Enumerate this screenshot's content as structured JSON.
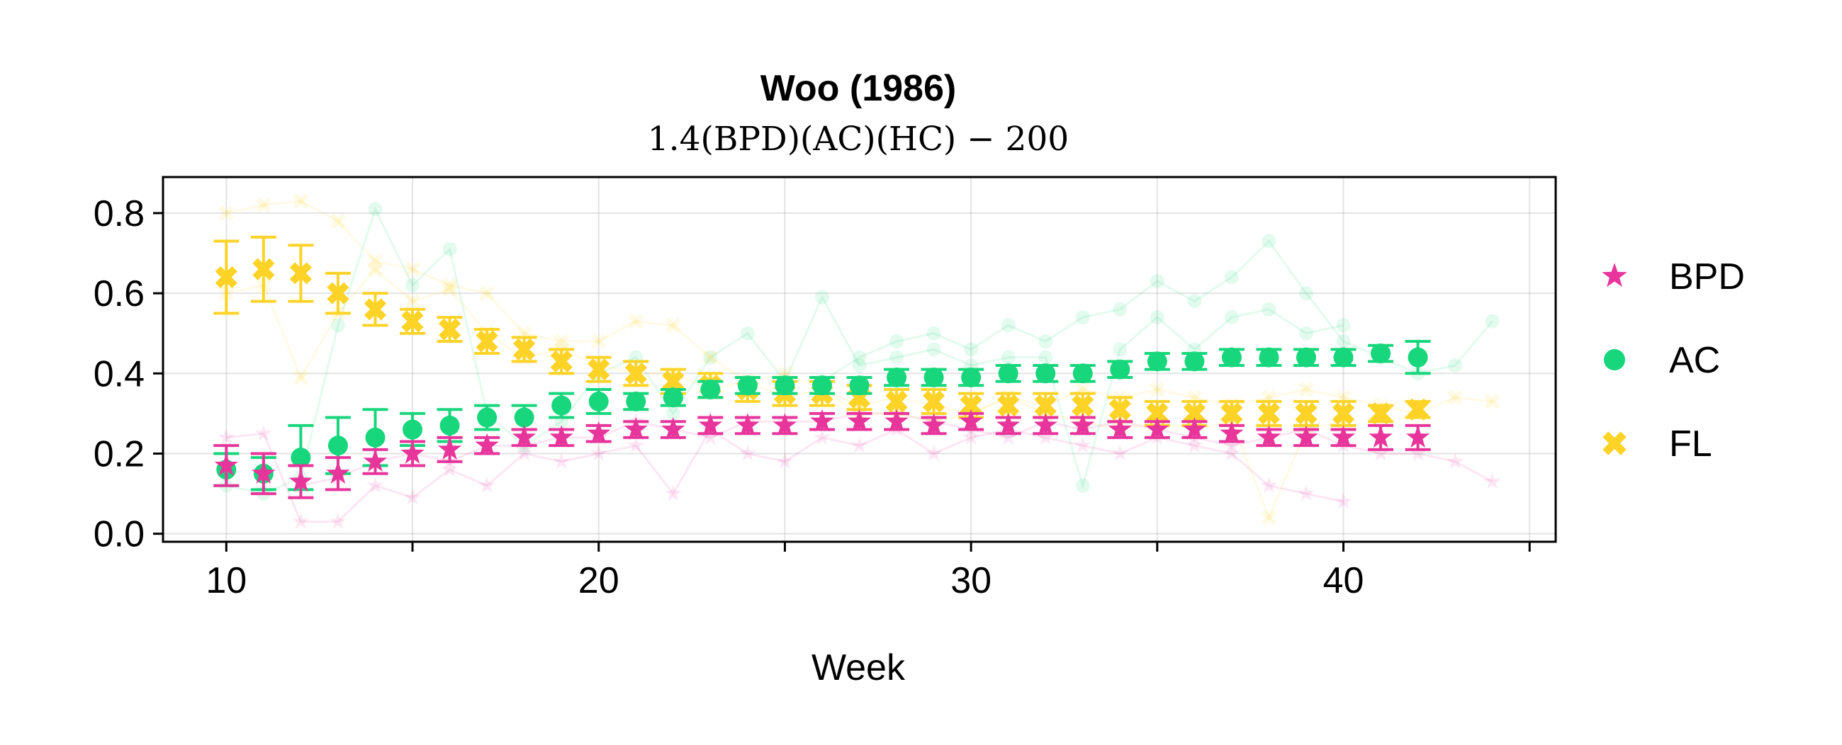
{
  "chart_data": {
    "type": "scatter",
    "title": "Woo (1986)",
    "subtitle": "1.4(BPD)(AC)(HC) − 200",
    "xlabel": "Week",
    "ylabel": "",
    "xlim": [
      8.3,
      45.7
    ],
    "ylim": [
      -0.02,
      0.89
    ],
    "xticks": [
      10,
      20,
      30,
      40
    ],
    "xticks_minor": [
      15,
      25,
      35,
      45
    ],
    "yticks": [
      0.0,
      0.2,
      0.4,
      0.6,
      0.8
    ],
    "ytick_labels": [
      "0.0",
      "0.2",
      "0.4",
      "0.6",
      "0.8"
    ],
    "xtick_labels": [
      "10",
      "20",
      "30",
      "40"
    ],
    "grid": true,
    "legend_position": "right",
    "series": [
      {
        "name": "BPD",
        "color": "#e8359b",
        "marker": "star",
        "x": [
          10,
          11,
          12,
          13,
          14,
          15,
          16,
          17,
          18,
          19,
          20,
          21,
          22,
          23,
          24,
          25,
          26,
          27,
          28,
          29,
          30,
          31,
          32,
          33,
          34,
          35,
          36,
          37,
          38,
          39,
          40,
          41,
          42
        ],
        "mean": [
          0.17,
          0.15,
          0.13,
          0.15,
          0.18,
          0.2,
          0.21,
          0.22,
          0.24,
          0.24,
          0.25,
          0.26,
          0.26,
          0.27,
          0.27,
          0.27,
          0.28,
          0.28,
          0.28,
          0.27,
          0.28,
          0.27,
          0.27,
          0.27,
          0.26,
          0.26,
          0.26,
          0.25,
          0.24,
          0.24,
          0.24,
          0.24,
          0.24
        ],
        "err": [
          0.05,
          0.05,
          0.04,
          0.04,
          0.03,
          0.03,
          0.03,
          0.02,
          0.02,
          0.02,
          0.02,
          0.02,
          0.02,
          0.02,
          0.02,
          0.02,
          0.02,
          0.02,
          0.02,
          0.02,
          0.02,
          0.02,
          0.02,
          0.02,
          0.02,
          0.02,
          0.02,
          0.02,
          0.02,
          0.02,
          0.02,
          0.03,
          0.03
        ]
      },
      {
        "name": "AC",
        "color": "#17d67c",
        "marker": "circle",
        "x": [
          10,
          11,
          12,
          13,
          14,
          15,
          16,
          17,
          18,
          19,
          20,
          21,
          22,
          23,
          24,
          25,
          26,
          27,
          28,
          29,
          30,
          31,
          32,
          33,
          34,
          35,
          36,
          37,
          38,
          39,
          40,
          41,
          42
        ],
        "mean": [
          0.16,
          0.15,
          0.19,
          0.22,
          0.24,
          0.26,
          0.27,
          0.29,
          0.29,
          0.32,
          0.33,
          0.33,
          0.34,
          0.36,
          0.37,
          0.37,
          0.37,
          0.37,
          0.39,
          0.39,
          0.39,
          0.4,
          0.4,
          0.4,
          0.41,
          0.43,
          0.43,
          0.44,
          0.44,
          0.44,
          0.44,
          0.45,
          0.44
        ],
        "err": [
          0.04,
          0.04,
          0.08,
          0.07,
          0.07,
          0.04,
          0.04,
          0.03,
          0.03,
          0.03,
          0.03,
          0.02,
          0.02,
          0.02,
          0.02,
          0.02,
          0.02,
          0.02,
          0.02,
          0.02,
          0.02,
          0.02,
          0.02,
          0.02,
          0.02,
          0.02,
          0.02,
          0.02,
          0.02,
          0.02,
          0.02,
          0.02,
          0.04
        ]
      },
      {
        "name": "FL",
        "color": "#fdd327",
        "marker": "x",
        "x": [
          10,
          11,
          12,
          13,
          14,
          15,
          16,
          17,
          18,
          19,
          20,
          21,
          22,
          23,
          24,
          25,
          26,
          27,
          28,
          29,
          30,
          31,
          32,
          33,
          34,
          35,
          36,
          37,
          38,
          39,
          40,
          41,
          42
        ],
        "mean": [
          0.64,
          0.66,
          0.65,
          0.6,
          0.56,
          0.53,
          0.51,
          0.48,
          0.46,
          0.43,
          0.41,
          0.4,
          0.38,
          0.37,
          0.36,
          0.35,
          0.35,
          0.34,
          0.33,
          0.33,
          0.32,
          0.32,
          0.32,
          0.32,
          0.31,
          0.3,
          0.3,
          0.3,
          0.3,
          0.3,
          0.3,
          0.3,
          0.31
        ],
        "err": [
          0.09,
          0.08,
          0.07,
          0.05,
          0.04,
          0.03,
          0.03,
          0.03,
          0.03,
          0.03,
          0.03,
          0.03,
          0.03,
          0.03,
          0.03,
          0.03,
          0.03,
          0.03,
          0.03,
          0.03,
          0.03,
          0.03,
          0.03,
          0.03,
          0.03,
          0.03,
          0.03,
          0.03,
          0.03,
          0.03,
          0.03,
          0.02,
          0.02
        ]
      }
    ],
    "background_traces": [
      {
        "series": "BPD",
        "x": [
          10,
          11,
          12,
          13,
          14,
          15,
          16,
          17,
          18,
          19,
          20,
          21,
          22,
          23,
          24,
          25,
          26,
          27,
          28,
          29,
          30,
          31,
          32,
          33,
          34,
          35,
          36,
          37,
          38,
          39,
          40
        ],
        "y": [
          0.24,
          0.25,
          0.03,
          0.03,
          0.12,
          0.09,
          0.16,
          0.12,
          0.2,
          0.18,
          0.2,
          0.22,
          0.1,
          0.26,
          0.2,
          0.18,
          0.24,
          0.22,
          0.26,
          0.2,
          0.24,
          0.26,
          0.24,
          0.22,
          0.2,
          0.24,
          0.22,
          0.2,
          0.12,
          0.1,
          0.08
        ]
      },
      {
        "series": "BPD",
        "x": [
          12,
          13,
          14,
          15,
          16,
          17,
          18,
          19,
          20,
          21,
          22,
          23,
          24,
          25,
          26,
          27,
          28,
          29,
          30,
          31,
          32,
          33,
          34,
          35,
          36,
          37,
          38,
          39,
          40,
          41,
          42,
          43,
          44
        ],
        "y": [
          0.12,
          0.14,
          0.18,
          0.2,
          0.18,
          0.22,
          0.22,
          0.24,
          0.24,
          0.28,
          0.26,
          0.24,
          0.28,
          0.28,
          0.28,
          0.3,
          0.3,
          0.28,
          0.26,
          0.24,
          0.28,
          0.26,
          0.28,
          0.26,
          0.24,
          0.22,
          0.24,
          0.26,
          0.22,
          0.2,
          0.2,
          0.18,
          0.13
        ]
      },
      {
        "series": "AC",
        "x": [
          10,
          11,
          12,
          13,
          14,
          15,
          16,
          17,
          18,
          19,
          20,
          21,
          22,
          23,
          24,
          25,
          26,
          27,
          28,
          29,
          30,
          31,
          32,
          33,
          34,
          35,
          36,
          37,
          38,
          39,
          40
        ],
        "y": [
          0.12,
          0.1,
          0.14,
          0.52,
          0.81,
          0.62,
          0.71,
          0.3,
          0.22,
          0.28,
          0.4,
          0.44,
          0.3,
          0.44,
          0.5,
          0.38,
          0.59,
          0.42,
          0.44,
          0.46,
          0.42,
          0.44,
          0.44,
          0.12,
          0.46,
          0.54,
          0.46,
          0.54,
          0.56,
          0.5,
          0.52
        ]
      },
      {
        "series": "AC",
        "x": [
          26,
          27,
          28,
          29,
          30,
          31,
          32,
          33,
          34,
          35,
          36,
          37,
          38,
          39,
          40,
          41,
          42,
          43,
          44
        ],
        "y": [
          0.38,
          0.44,
          0.48,
          0.5,
          0.46,
          0.52,
          0.48,
          0.54,
          0.56,
          0.63,
          0.58,
          0.64,
          0.73,
          0.6,
          0.48,
          0.44,
          0.4,
          0.42,
          0.53
        ]
      },
      {
        "series": "FL",
        "x": [
          10,
          11,
          12,
          13,
          14,
          15,
          16,
          17,
          18,
          19,
          20,
          21,
          22,
          23,
          24,
          25,
          26,
          27,
          28,
          29,
          30,
          31,
          32,
          33,
          34,
          35,
          36,
          37,
          38,
          39,
          40
        ],
        "y": [
          0.8,
          0.82,
          0.83,
          0.78,
          0.68,
          0.66,
          0.62,
          0.6,
          0.5,
          0.48,
          0.48,
          0.53,
          0.52,
          0.44,
          0.38,
          0.4,
          0.36,
          0.3,
          0.3,
          0.28,
          0.3,
          0.34,
          0.3,
          0.28,
          0.26,
          0.28,
          0.26,
          0.28,
          0.04,
          0.26,
          0.28
        ]
      },
      {
        "series": "FL",
        "x": [
          10,
          11,
          12,
          13,
          14,
          15,
          16,
          17,
          18,
          19,
          20,
          21,
          22,
          23,
          24,
          25,
          26,
          27,
          28,
          29,
          30,
          31,
          32,
          33,
          34,
          35,
          36,
          37,
          38,
          39,
          40,
          41,
          42,
          43,
          44
        ],
        "y": [
          0.6,
          0.62,
          0.39,
          0.55,
          0.66,
          0.58,
          0.61,
          0.5,
          0.44,
          0.46,
          0.42,
          0.4,
          0.4,
          0.36,
          0.38,
          0.34,
          0.36,
          0.32,
          0.34,
          0.32,
          0.3,
          0.34,
          0.32,
          0.36,
          0.34,
          0.36,
          0.34,
          0.32,
          0.34,
          0.36,
          0.34,
          0.32,
          0.3,
          0.34,
          0.33
        ]
      }
    ]
  }
}
